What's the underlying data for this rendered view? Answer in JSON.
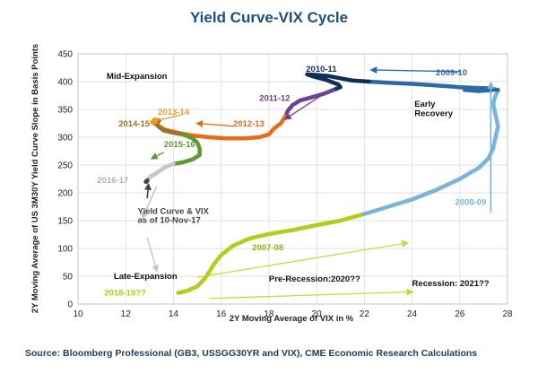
{
  "chart_data": {
    "type": "line",
    "title": "Yield Curve-VIX Cycle",
    "xlabel": "2Y Moving Average of VIX in %",
    "ylabel": "2Y Moving Average of US 3M30Y Yield Curve Slope in Basis Points",
    "xlim": [
      10,
      28
    ],
    "ylim": [
      0,
      450
    ],
    "x_ticks": [
      "10",
      "12",
      "14",
      "16",
      "18",
      "20",
      "22",
      "24",
      "26",
      "28"
    ],
    "y_ticks": [
      "0",
      "50",
      "100",
      "150",
      "200",
      "250",
      "300",
      "350",
      "400",
      "450"
    ],
    "grid": true,
    "series": [
      {
        "name": "2007-08",
        "color": "#b5cc18",
        "points": [
          [
            14.2,
            20
          ],
          [
            14.6,
            24
          ],
          [
            15.0,
            32
          ],
          [
            15.3,
            45
          ],
          [
            15.5,
            58
          ],
          [
            15.7,
            72
          ],
          [
            16.0,
            88
          ],
          [
            16.5,
            105
          ],
          [
            17.2,
            118
          ],
          [
            18.0,
            126
          ],
          [
            19.0,
            133
          ],
          [
            20.0,
            142
          ],
          [
            21.0,
            150
          ],
          [
            22.0,
            162
          ]
        ]
      },
      {
        "name": "2008-09",
        "color": "#79b4dc",
        "points": [
          [
            22.0,
            162
          ],
          [
            23.0,
            175
          ],
          [
            24.0,
            188
          ],
          [
            25.0,
            205
          ],
          [
            26.0,
            225
          ],
          [
            26.8,
            245
          ],
          [
            27.2,
            262
          ],
          [
            27.4,
            280
          ],
          [
            27.5,
            300
          ],
          [
            27.6,
            320
          ],
          [
            27.5,
            340
          ],
          [
            27.4,
            360
          ],
          [
            27.5,
            375
          ],
          [
            27.6,
            385
          ]
        ]
      },
      {
        "name": "2009-10",
        "color": "#2b6aa6",
        "points": [
          [
            27.6,
            385
          ],
          [
            27.2,
            388
          ],
          [
            26.6,
            387
          ],
          [
            26.2,
            385
          ],
          [
            26.8,
            383
          ],
          [
            27.4,
            385
          ],
          [
            27.0,
            388
          ],
          [
            26.0,
            390
          ],
          [
            25.0,
            393
          ],
          [
            24.0,
            396
          ],
          [
            23.0,
            398
          ],
          [
            22.2,
            400
          ]
        ]
      },
      {
        "name": "2010-11",
        "color": "#0f2d55",
        "points": [
          [
            22.2,
            400
          ],
          [
            21.5,
            402
          ],
          [
            21.0,
            406
          ],
          [
            20.5,
            410
          ],
          [
            20.0,
            412
          ],
          [
            19.6,
            413
          ],
          [
            19.8,
            410
          ],
          [
            20.4,
            403
          ],
          [
            20.9,
            395
          ],
          [
            21.0,
            390
          ],
          [
            20.7,
            385
          ]
        ]
      },
      {
        "name": "2011-12",
        "color": "#6d3f96",
        "points": [
          [
            20.7,
            385
          ],
          [
            20.3,
            378
          ],
          [
            19.8,
            372
          ],
          [
            19.3,
            366
          ],
          [
            19.0,
            358
          ],
          [
            18.8,
            348
          ],
          [
            18.7,
            338
          ]
        ]
      },
      {
        "name": "2012-13",
        "color": "#ea6a16",
        "points": [
          [
            18.7,
            338
          ],
          [
            18.5,
            325
          ],
          [
            18.2,
            315
          ],
          [
            18.0,
            305
          ],
          [
            17.6,
            300
          ],
          [
            17.0,
            298
          ],
          [
            16.2,
            298
          ],
          [
            15.5,
            300
          ],
          [
            14.8,
            303
          ],
          [
            14.3,
            307
          ],
          [
            13.9,
            311
          ],
          [
            13.6,
            314
          ],
          [
            13.5,
            318
          ]
        ]
      },
      {
        "name": "2013-14",
        "color": "#ee9a2c",
        "points": [
          [
            13.5,
            318
          ],
          [
            13.3,
            322
          ],
          [
            13.1,
            327
          ],
          [
            13.2,
            332
          ],
          [
            13.4,
            330
          ]
        ]
      },
      {
        "name": "2014-15",
        "color": "#9a7426",
        "points": [
          [
            13.4,
            330
          ],
          [
            13.3,
            325
          ],
          [
            13.4,
            318
          ],
          [
            13.6,
            312
          ],
          [
            14.0,
            308
          ],
          [
            14.4,
            305
          ]
        ]
      },
      {
        "name": "2015-16",
        "color": "#5f9a2e",
        "points": [
          [
            14.4,
            305
          ],
          [
            14.8,
            298
          ],
          [
            15.0,
            290
          ],
          [
            15.1,
            280
          ],
          [
            15.1,
            268
          ],
          [
            14.8,
            260
          ],
          [
            14.4,
            255
          ],
          [
            14.0,
            252
          ]
        ]
      },
      {
        "name": "2016-17",
        "color": "#c6c6c6",
        "points": [
          [
            14.0,
            252
          ],
          [
            13.6,
            245
          ],
          [
            13.3,
            236
          ],
          [
            13.0,
            228
          ],
          [
            12.9,
            222
          ]
        ]
      },
      {
        "name": "Yield Curve & VIX as of 10-Nov-17",
        "color": "#444444",
        "points": [
          [
            12.9,
            222
          ],
          [
            12.85,
            220
          ]
        ]
      }
    ],
    "annotations": [
      {
        "text": "Mid-Expansion",
        "color": "#111111"
      },
      {
        "text": "2010-11",
        "color": "#0f2d55"
      },
      {
        "text": "2009-10",
        "color": "#2b6aa6"
      },
      {
        "text": "2011-12",
        "color": "#6d3f96"
      },
      {
        "text": "Early",
        "color": "#111111"
      },
      {
        "text": "Recovery",
        "color": "#111111"
      },
      {
        "text": "2013-14",
        "color": "#ee9a2c"
      },
      {
        "text": "2014-15",
        "color": "#9a7426"
      },
      {
        "text": "2012-13",
        "color": "#ea6a16"
      },
      {
        "text": "2015-16",
        "color": "#5f9a2e"
      },
      {
        "text": "2016-17",
        "color": "#b0b0b0"
      },
      {
        "text": "Yield Curve & VIX",
        "color": "#444444"
      },
      {
        "text": "as of 10-Nov-17",
        "color": "#444444"
      },
      {
        "text": "2008-09",
        "color": "#79b4dc"
      },
      {
        "text": "2007-08",
        "color": "#9aad10"
      },
      {
        "text": "Late-Expansion",
        "color": "#111111"
      },
      {
        "text": "Pre-Recession:2020??",
        "color": "#111111"
      },
      {
        "text": "Recession: 2021??",
        "color": "#111111"
      },
      {
        "text": "2018-19??",
        "color": "#b5cc18"
      }
    ]
  },
  "source": "Source: Bloomberg Professional (GB3, USSGG30YR and VIX), CME Economic Research Calculations"
}
